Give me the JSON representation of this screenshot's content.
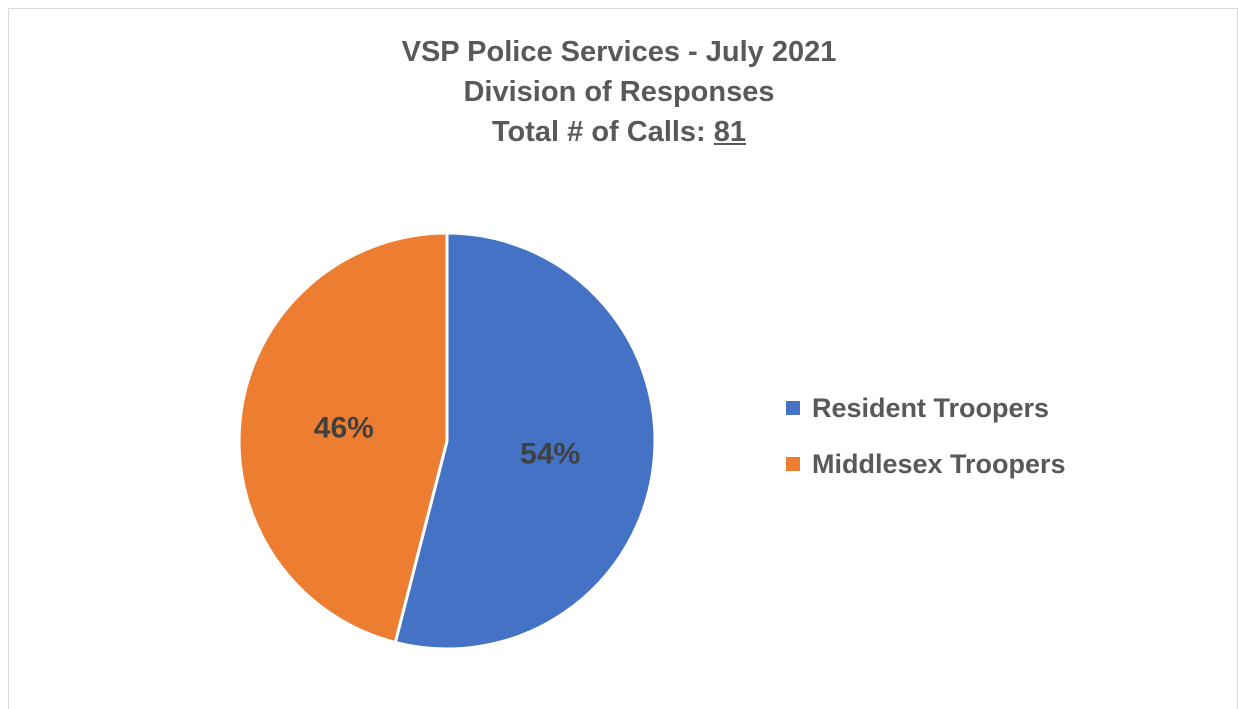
{
  "chart_data": {
    "type": "pie",
    "title_lines": [
      "VSP Police Services - July 2021",
      "Division of Responses"
    ],
    "total_label": "Total # of Calls: ",
    "total_value": "81",
    "categories": [
      "Resident Troopers",
      "Middlesex Troopers"
    ],
    "values": [
      54,
      46
    ],
    "data_labels": [
      "54%",
      "46%"
    ],
    "colors": [
      "#4472C4",
      "#ED7D31"
    ],
    "legend_position": "right"
  }
}
